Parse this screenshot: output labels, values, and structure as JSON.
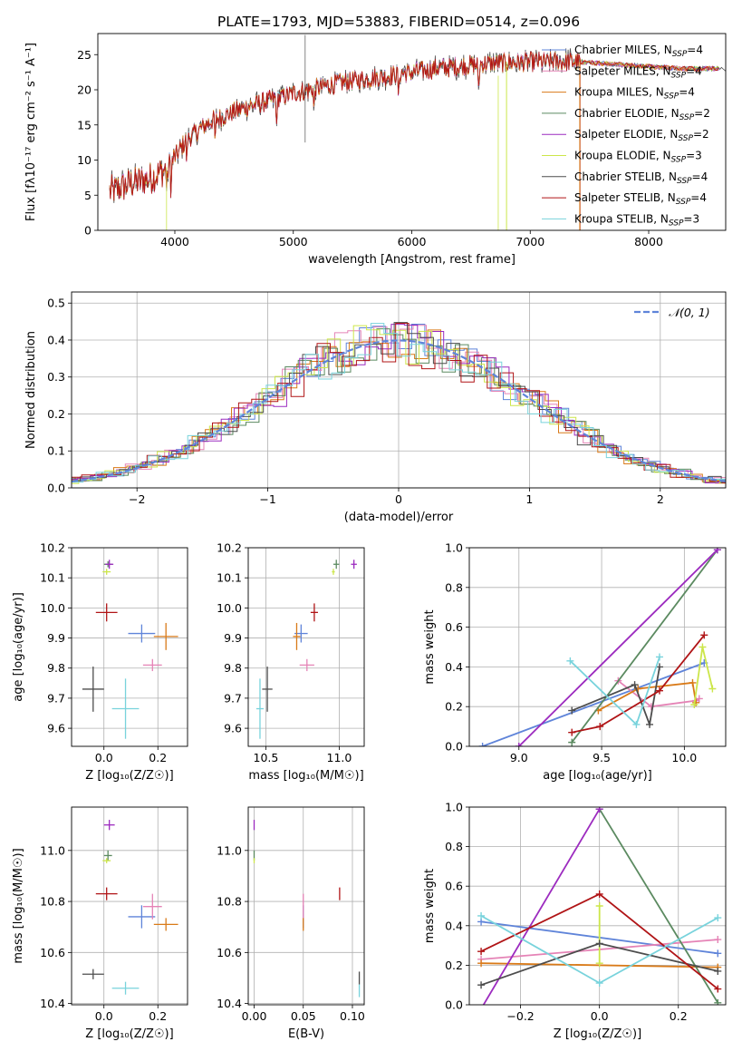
{
  "figure_title": "PLATE=1793, MJD=53883, FIBERID=0514, z=0.096",
  "model_colors": {
    "Chabrier MILES": "#5f84d9",
    "Salpeter MILES": "#e583b6",
    "Kroupa MILES": "#d97a18",
    "Chabrier ELODIE": "#5b8a60",
    "Salpeter ELODIE": "#9c2bbf",
    "Kroupa ELODIE": "#cce64a",
    "Chabrier STELIB": "#4d4d4d",
    "Salpeter STELIB": "#b01416",
    "Kroupa STELIB": "#78d3dc"
  },
  "chart_data": [
    {
      "id": "spectrum",
      "type": "line",
      "xlabel": "wavelength [Angstrom, rest frame]",
      "ylabel": "Flux [fλ10⁻¹⁷ erg cm⁻² s⁻¹ A⁻¹]",
      "xlim": [
        3350,
        8650
      ],
      "ylim": [
        0,
        28
      ],
      "xticks": [
        4000,
        5000,
        6000,
        7000,
        8000
      ],
      "yticks": [
        0,
        5,
        10,
        15,
        20,
        25
      ],
      "legend_position": "right",
      "legend": [
        {
          "model": "Chabrier MILES",
          "n": "4"
        },
        {
          "model": "Salpeter MILES",
          "n": "4"
        },
        {
          "model": "Kroupa MILES",
          "n": "4"
        },
        {
          "model": "Chabrier ELODIE",
          "n": "2"
        },
        {
          "model": "Salpeter ELODIE",
          "n": "2"
        },
        {
          "model": "Kroupa ELODIE",
          "n": "3"
        },
        {
          "model": "Chabrier STELIB",
          "n": "4"
        },
        {
          "model": "Salpeter STELIB",
          "n": "4"
        },
        {
          "model": "Kroupa STELIB",
          "n": "3"
        }
      ],
      "continuum_x": [
        3450,
        3600,
        3800,
        3950,
        4100,
        4300,
        4600,
        5000,
        5400,
        5800,
        6200,
        6600,
        7000,
        7400,
        7800,
        8300
      ],
      "continuum_y": [
        5.5,
        6.5,
        7.5,
        9,
        13,
        15.5,
        17.5,
        19.5,
        21,
        22,
        23,
        23.7,
        24,
        24,
        23.5,
        23
      ]
    },
    {
      "id": "residuals",
      "type": "line",
      "xlabel": "(data-model)/error",
      "ylabel": "Normed distribution",
      "xlim": [
        -2.5,
        2.5
      ],
      "ylim": [
        0,
        0.53
      ],
      "xticks": [
        -2,
        -1,
        0,
        1,
        2
      ],
      "yticks": [
        0.0,
        0.1,
        0.2,
        0.3,
        0.4,
        0.5
      ],
      "grid": true,
      "legend_position": "top-right",
      "legend_label": "𝒩(0, 1)",
      "bin_width": 0.1
    },
    {
      "id": "age-vs-z",
      "type": "scatter",
      "xlabel": "Z [log₁₀(Z/Z☉)]",
      "ylabel": "age  [log₁₀(age/yr)]",
      "xlim": [
        -0.12,
        0.31
      ],
      "ylim": [
        9.54,
        10.2
      ],
      "xticks": [
        0.0,
        0.2
      ],
      "yticks": [
        9.6,
        9.7,
        9.8,
        9.9,
        10.0,
        10.1,
        10.2
      ],
      "grid": true,
      "points": [
        {
          "model": "Chabrier MILES",
          "x": 0.14,
          "y": 9.915,
          "xerr": 0.1,
          "yerr": 0.06
        },
        {
          "model": "Salpeter MILES",
          "x": 0.18,
          "y": 9.81,
          "xerr": 0.07,
          "yerr": 0.04
        },
        {
          "model": "Kroupa MILES",
          "x": 0.23,
          "y": 9.905,
          "xerr": 0.09,
          "yerr": 0.09
        },
        {
          "model": "Chabrier ELODIE",
          "x": 0.015,
          "y": 10.145,
          "xerr": 0.03,
          "yerr": 0.02
        },
        {
          "model": "Salpeter ELODIE",
          "x": 0.02,
          "y": 10.145,
          "xerr": 0.03,
          "yerr": 0.03
        },
        {
          "model": "Kroupa ELODIE",
          "x": 0.01,
          "y": 10.12,
          "xerr": 0.03,
          "yerr": 0.02
        },
        {
          "model": "Chabrier STELIB",
          "x": -0.04,
          "y": 9.73,
          "xerr": 0.08,
          "yerr": 0.15
        },
        {
          "model": "Salpeter STELIB",
          "x": 0.01,
          "y": 9.985,
          "xerr": 0.08,
          "yerr": 0.06
        },
        {
          "model": "Kroupa STELIB",
          "x": 0.08,
          "y": 9.665,
          "xerr": 0.1,
          "yerr": 0.2
        }
      ]
    },
    {
      "id": "age-vs-mass",
      "type": "scatter",
      "xlabel": "mass [log₁₀(M/M☉)]",
      "ylabel": "",
      "xlim": [
        10.38,
        11.17
      ],
      "ylim": [
        9.54,
        10.2
      ],
      "xticks": [
        10.5,
        11.0
      ],
      "yticks": [
        9.6,
        9.7,
        9.8,
        9.9,
        10.0,
        10.1,
        10.2
      ],
      "grid": true,
      "points": [
        {
          "model": "Chabrier MILES",
          "x": 10.74,
          "y": 9.915,
          "xerr": 0.09,
          "yerr": 0.06
        },
        {
          "model": "Salpeter MILES",
          "x": 10.78,
          "y": 9.81,
          "xerr": 0.1,
          "yerr": 0.04
        },
        {
          "model": "Kroupa MILES",
          "x": 10.71,
          "y": 9.905,
          "xerr": 0.05,
          "yerr": 0.09
        },
        {
          "model": "Chabrier ELODIE",
          "x": 10.98,
          "y": 10.145,
          "xerr": 0.04,
          "yerr": 0.03
        },
        {
          "model": "Salpeter ELODIE",
          "x": 11.1,
          "y": 10.145,
          "xerr": 0.04,
          "yerr": 0.03
        },
        {
          "model": "Kroupa ELODIE",
          "x": 10.96,
          "y": 10.12,
          "xerr": 0.02,
          "yerr": 0.02
        },
        {
          "model": "Chabrier STELIB",
          "x": 10.51,
          "y": 9.73,
          "xerr": 0.07,
          "yerr": 0.15
        },
        {
          "model": "Salpeter STELIB",
          "x": 10.83,
          "y": 9.985,
          "xerr": 0.05,
          "yerr": 0.06
        },
        {
          "model": "Kroupa STELIB",
          "x": 10.46,
          "y": 9.665,
          "xerr": 0.05,
          "yerr": 0.2
        }
      ]
    },
    {
      "id": "weight-vs-age",
      "type": "line",
      "xlabel": "age  [log₁₀(age/yr)]",
      "ylabel": "mass weight",
      "xlim": [
        8.7,
        10.25
      ],
      "ylim": [
        0,
        1.0
      ],
      "xticks": [
        9.0,
        9.5,
        10.0
      ],
      "yticks": [
        0.0,
        0.2,
        0.4,
        0.6,
        0.8,
        1.0
      ],
      "grid": true,
      "series": [
        {
          "model": "Chabrier MILES",
          "x": [
            8.78,
            10.12
          ],
          "y": [
            0.0,
            0.42
          ]
        },
        {
          "model": "Salpeter MILES",
          "x": [
            9.6,
            9.8,
            10.07,
            10.09
          ],
          "y": [
            0.33,
            0.2,
            0.23,
            0.24
          ]
        },
        {
          "model": "Kroupa MILES",
          "x": [
            9.48,
            9.72,
            10.05,
            10.07
          ],
          "y": [
            0.18,
            0.29,
            0.32,
            0.22
          ]
        },
        {
          "model": "Chabrier ELODIE",
          "x": [
            9.32,
            10.2
          ],
          "y": [
            0.02,
            0.99
          ]
        },
        {
          "model": "Salpeter ELODIE",
          "x": [
            9.0,
            10.2
          ],
          "y": [
            0.0,
            0.99
          ]
        },
        {
          "model": "Kroupa ELODIE",
          "x": [
            10.06,
            10.11,
            10.17
          ],
          "y": [
            0.21,
            0.5,
            0.29
          ]
        },
        {
          "model": "Chabrier STELIB",
          "x": [
            9.32,
            9.7,
            9.79,
            9.85
          ],
          "y": [
            0.18,
            0.31,
            0.11,
            0.4
          ]
        },
        {
          "model": "Salpeter STELIB",
          "x": [
            9.32,
            9.49,
            9.85,
            10.12
          ],
          "y": [
            0.07,
            0.1,
            0.28,
            0.56
          ]
        },
        {
          "model": "Kroupa STELIB",
          "x": [
            9.31,
            9.71,
            9.85
          ],
          "y": [
            0.43,
            0.11,
            0.45
          ]
        }
      ]
    },
    {
      "id": "mass-vs-z",
      "type": "scatter",
      "xlabel": "Z [log₁₀(Z/Z☉)]",
      "ylabel": "mass [log₁₀(M/M☉)]",
      "xlim": [
        -0.12,
        0.31
      ],
      "ylim": [
        10.395,
        11.17
      ],
      "xticks": [
        0.0,
        0.2
      ],
      "yticks": [
        10.4,
        10.6,
        10.8,
        11.0
      ],
      "grid": true,
      "points": [
        {
          "model": "Chabrier MILES",
          "x": 0.14,
          "y": 10.74,
          "xerr": 0.1,
          "yerr": 0.09
        },
        {
          "model": "Salpeter MILES",
          "x": 0.18,
          "y": 10.78,
          "xerr": 0.07,
          "yerr": 0.1
        },
        {
          "model": "Kroupa MILES",
          "x": 0.23,
          "y": 10.71,
          "xerr": 0.09,
          "yerr": 0.05
        },
        {
          "model": "Chabrier ELODIE",
          "x": 0.015,
          "y": 10.98,
          "xerr": 0.03,
          "yerr": 0.04
        },
        {
          "model": "Salpeter ELODIE",
          "x": 0.02,
          "y": 11.1,
          "xerr": 0.04,
          "yerr": 0.04
        },
        {
          "model": "Kroupa ELODIE",
          "x": 0.01,
          "y": 10.96,
          "xerr": 0.03,
          "yerr": 0.02
        },
        {
          "model": "Chabrier STELIB",
          "x": -0.04,
          "y": 10.515,
          "xerr": 0.08,
          "yerr": 0.04
        },
        {
          "model": "Salpeter STELIB",
          "x": 0.01,
          "y": 10.83,
          "xerr": 0.08,
          "yerr": 0.05
        },
        {
          "model": "Kroupa STELIB",
          "x": 0.08,
          "y": 10.46,
          "xerr": 0.1,
          "yerr": 0.05
        }
      ]
    },
    {
      "id": "mass-vs-ebv",
      "type": "scatter",
      "xlabel": "E(B-V)",
      "ylabel": "",
      "xlim": [
        -0.006,
        0.112
      ],
      "ylim": [
        10.395,
        11.17
      ],
      "xticks": [
        0.0,
        0.05,
        0.1
      ],
      "yticks": [
        10.4,
        10.6,
        10.8,
        11.0
      ],
      "grid": true,
      "points": [
        {
          "model": "Chabrier MILES",
          "x": 0.05,
          "y": 10.74,
          "xerr": 0.0,
          "yerr": 0.09
        },
        {
          "model": "Salpeter MILES",
          "x": 0.05,
          "y": 10.78,
          "xerr": 0.0,
          "yerr": 0.1
        },
        {
          "model": "Kroupa MILES",
          "x": 0.05,
          "y": 10.71,
          "xerr": 0.0,
          "yerr": 0.05
        },
        {
          "model": "Chabrier ELODIE",
          "x": 0.0,
          "y": 10.98,
          "xerr": 0.0,
          "yerr": 0.04
        },
        {
          "model": "Salpeter ELODIE",
          "x": 0.0,
          "y": 11.1,
          "xerr": 0.0,
          "yerr": 0.04
        },
        {
          "model": "Kroupa ELODIE",
          "x": 0.0,
          "y": 10.96,
          "xerr": 0.0,
          "yerr": 0.02
        },
        {
          "model": "Chabrier STELIB",
          "x": 0.107,
          "y": 10.5,
          "xerr": 0.0,
          "yerr": 0.05
        },
        {
          "model": "Salpeter STELIB",
          "x": 0.087,
          "y": 10.83,
          "xerr": 0.0,
          "yerr": 0.05
        },
        {
          "model": "Kroupa STELIB",
          "x": 0.107,
          "y": 10.45,
          "xerr": 0.0,
          "yerr": 0.05
        }
      ]
    },
    {
      "id": "weight-vs-z",
      "type": "line",
      "xlabel": "Z [log₁₀(Z/Z☉)]",
      "ylabel": "mass weight",
      "xlim": [
        -0.33,
        0.32
      ],
      "ylim": [
        0,
        1.0
      ],
      "xticks": [
        -0.2,
        0.0,
        0.2
      ],
      "yticks": [
        0.0,
        0.2,
        0.4,
        0.6,
        0.8,
        1.0
      ],
      "grid": true,
      "series": [
        {
          "model": "Chabrier MILES",
          "x": [
            -0.3,
            0.3
          ],
          "y": [
            0.42,
            0.26
          ]
        },
        {
          "model": "Salpeter MILES",
          "x": [
            -0.3,
            0.3
          ],
          "y": [
            0.23,
            0.33
          ]
        },
        {
          "model": "Kroupa MILES",
          "x": [
            -0.3,
            0.3
          ],
          "y": [
            0.21,
            0.19
          ]
        },
        {
          "model": "Chabrier ELODIE",
          "x": [
            0.0,
            0.3
          ],
          "y": [
            0.99,
            0.01
          ]
        },
        {
          "model": "Salpeter ELODIE",
          "x": [
            -0.3,
            0.0
          ],
          "y": [
            -0.02,
            0.99
          ]
        },
        {
          "model": "Kroupa ELODIE",
          "x": [
            0.0,
            0.0
          ],
          "y": [
            0.21,
            0.5
          ]
        },
        {
          "model": "Chabrier STELIB",
          "x": [
            -0.3,
            0.0,
            0.3
          ],
          "y": [
            0.1,
            0.31,
            0.17
          ]
        },
        {
          "model": "Salpeter STELIB",
          "x": [
            -0.3,
            0.0,
            0.3
          ],
          "y": [
            0.27,
            0.56,
            0.08
          ]
        },
        {
          "model": "Kroupa STELIB",
          "x": [
            -0.3,
            0.0,
            0.3
          ],
          "y": [
            0.45,
            0.11,
            0.44
          ]
        }
      ]
    }
  ]
}
